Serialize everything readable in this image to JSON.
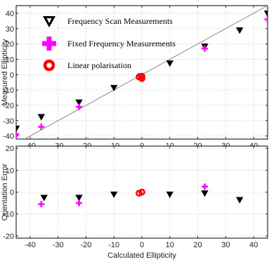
{
  "chart_data": [
    {
      "type": "scatter",
      "panel": "top",
      "xlabel": "",
      "ylabel": "Measured Ellipticity",
      "xlim": [
        -45,
        45
      ],
      "ylim": [
        -42,
        45
      ],
      "xticks": [
        -40,
        -30,
        -20,
        -10,
        0,
        10,
        20,
        30,
        40
      ],
      "yticks": [
        -40,
        -30,
        -20,
        -10,
        0,
        10,
        20,
        30,
        40
      ],
      "grid": "dotted",
      "reference_line": {
        "x": [
          -45,
          45
        ],
        "y": [
          -45,
          45
        ],
        "color": "#9a9a9a"
      },
      "legend": {
        "placement": "top-left",
        "entries": [
          {
            "label": "Frequency Scan Measurements",
            "marker": "triangle-down",
            "color": "#000000"
          },
          {
            "label": "Fixed Frequency Measurements",
            "marker": "plus",
            "color": "#ff00ff"
          },
          {
            "label": "Linear polarisation",
            "marker": "ring",
            "color": "#ff0000"
          }
        ]
      },
      "series": [
        {
          "name": "Frequency Scan Measurements",
          "marker": "triangle-down",
          "color": "#000000",
          "x": [
            -45,
            -36,
            -22.5,
            -10,
            10,
            22.5,
            35,
            45
          ],
          "y": [
            -35,
            -27.5,
            -18,
            -8.5,
            7.5,
            18.5,
            29,
            40
          ]
        },
        {
          "name": "Fixed Frequency Measurements",
          "marker": "plus",
          "color": "#ff00ff",
          "x": [
            -45,
            -36,
            -22.5,
            -1,
            0,
            22.5,
            45
          ],
          "y": [
            -39,
            -34,
            -21,
            -1,
            -2,
            17,
            36
          ]
        },
        {
          "name": "Linear polarisation",
          "marker": "ring",
          "color": "#ff0000",
          "x": [
            -1,
            0,
            0
          ],
          "y": [
            -1.5,
            -1,
            -2.5
          ]
        }
      ]
    },
    {
      "type": "scatter",
      "panel": "bottom",
      "xlabel": "Calculated Ellipticity",
      "ylabel": "Orientation Error",
      "xlim": [
        -45,
        45
      ],
      "ylim": [
        -21,
        21
      ],
      "xticks": [
        -40,
        -30,
        -20,
        -10,
        0,
        10,
        20,
        30,
        40
      ],
      "yticks": [
        -20,
        -10,
        0,
        10,
        20
      ],
      "grid": "dotted",
      "series": [
        {
          "name": "Frequency Scan Measurements",
          "marker": "triangle-down",
          "color": "#000000",
          "x": [
            -35,
            -22.5,
            -10,
            10,
            22.5,
            35
          ],
          "y": [
            -2.5,
            -2.5,
            -1,
            -1,
            -0.5,
            -3.5
          ]
        },
        {
          "name": "Fixed Frequency Measurements",
          "marker": "plus",
          "color": "#ff00ff",
          "x": [
            -36,
            -22.5,
            22.5
          ],
          "y": [
            -5.5,
            -5,
            2.5
          ]
        },
        {
          "name": "Linear polarisation",
          "marker": "ring",
          "color": "#ff0000",
          "x": [
            -1,
            0
          ],
          "y": [
            -0.5,
            0
          ]
        }
      ]
    }
  ]
}
